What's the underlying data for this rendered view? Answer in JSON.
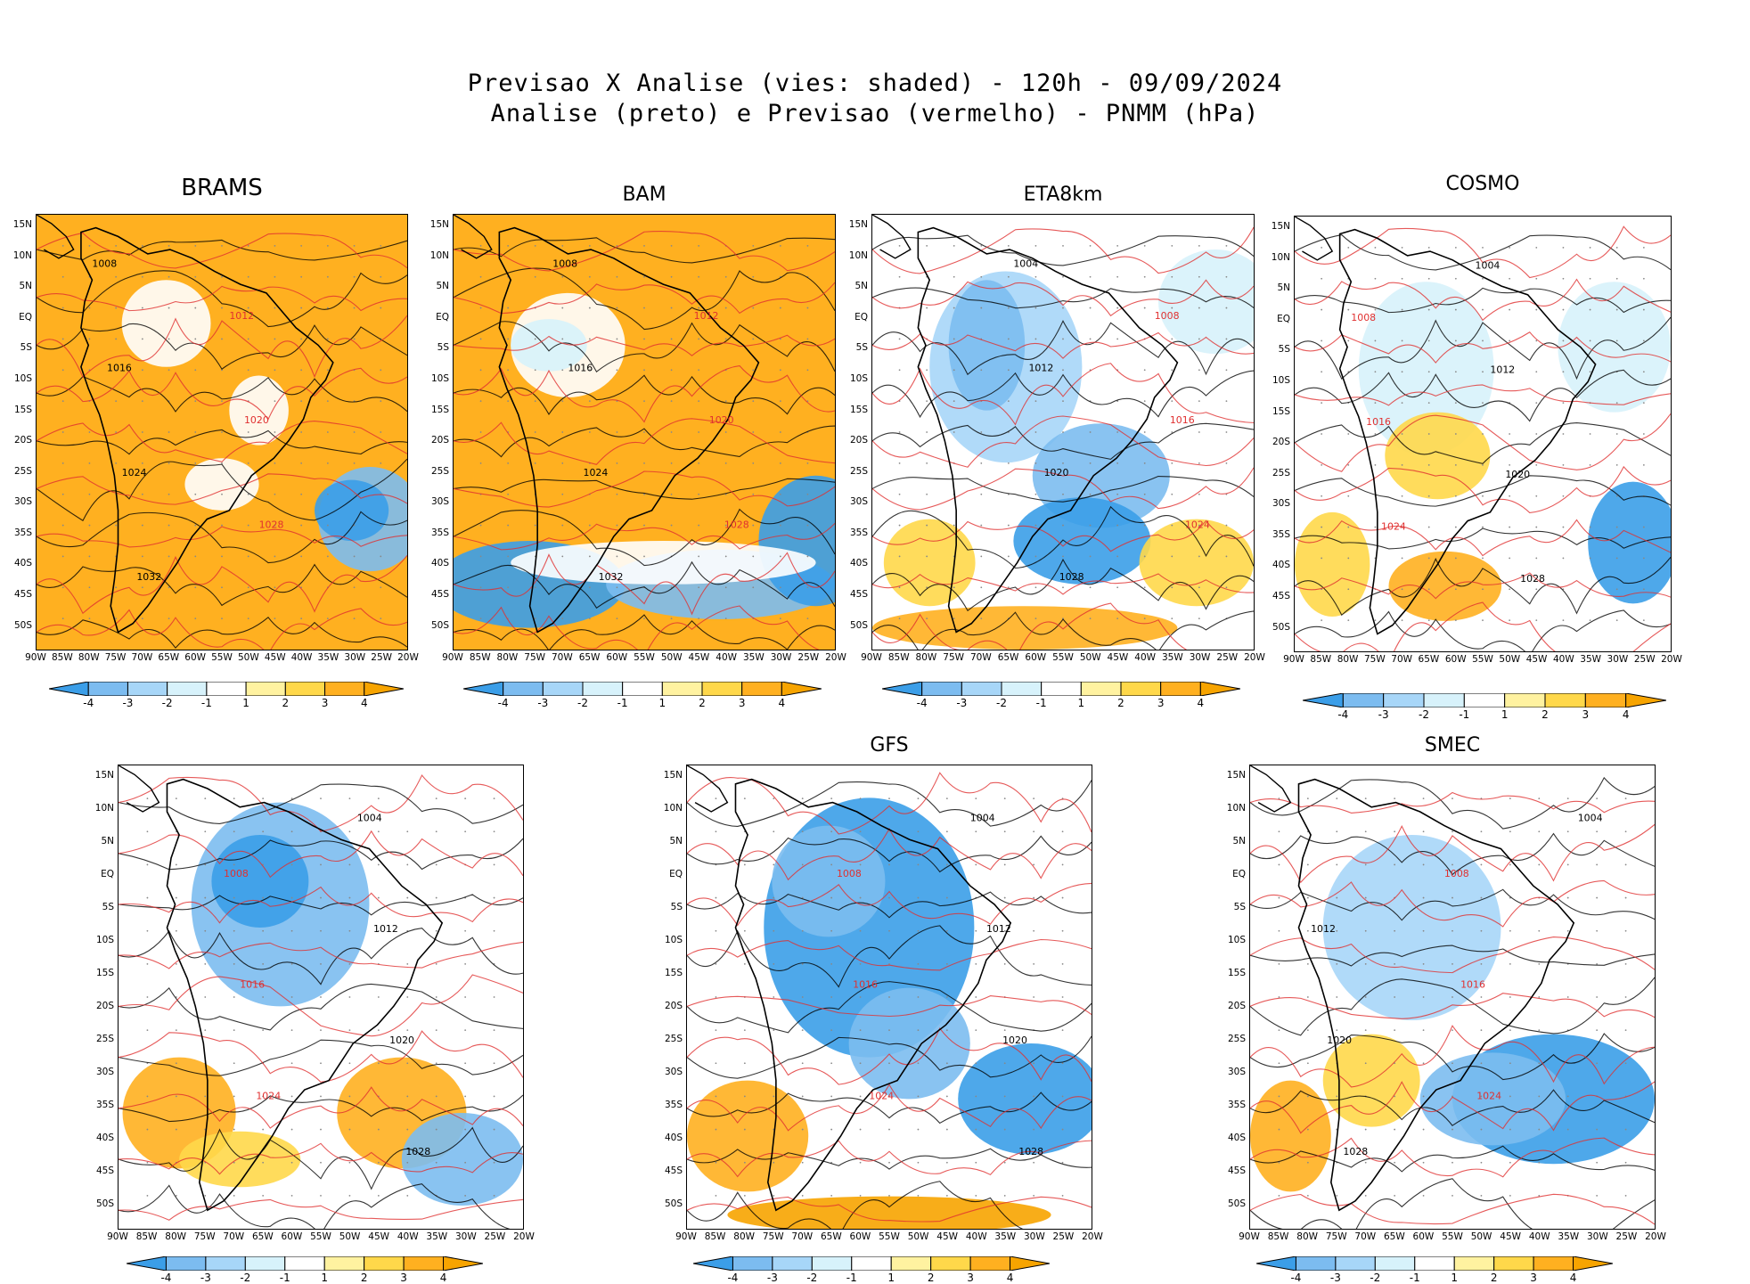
{
  "title": {
    "line1": "Previsao X Analise (vies: shaded) - 120h - 09/09/2024",
    "line2": "Analise (preto) e Previsao (vermelho) - PNMM (hPa)"
  },
  "axes": {
    "lat_labels": [
      "15N",
      "10N",
      "5N",
      "EQ",
      "5S",
      "10S",
      "15S",
      "20S",
      "25S",
      "30S",
      "35S",
      "40S",
      "45S",
      "50S"
    ],
    "lon_labels": [
      "90W",
      "85W",
      "80W",
      "75W",
      "70W",
      "65W",
      "60W",
      "55W",
      "50W",
      "45W",
      "40W",
      "35W",
      "30W",
      "25W",
      "20W"
    ]
  },
  "colorbar": {
    "labels": [
      "-4",
      "-3",
      "-2",
      "-1",
      "1",
      "2",
      "3",
      "4"
    ],
    "colors": [
      "#3b9ee8",
      "#7cbcf0",
      "#a7d6f8",
      "#d7f2fb",
      "#ffffff",
      "#fff2a0",
      "#ffd84a",
      "#ffb020",
      "#f7a400"
    ]
  },
  "colors": {
    "analysis_contour": "#000000",
    "forecast_contour": "#e03030",
    "coast": "#000000"
  },
  "panels": [
    {
      "id": "brams",
      "title": "BRAMS",
      "bias": "warm",
      "labels": [
        "1008",
        "1012",
        "1016",
        "1020",
        "1024",
        "1028",
        "1032"
      ]
    },
    {
      "id": "bam",
      "title": "BAM",
      "bias": "warm-south-cold",
      "labels": [
        "1008",
        "1012",
        "1016",
        "1020",
        "1024",
        "1028",
        "1032"
      ]
    },
    {
      "id": "eta",
      "title": "ETA8km",
      "bias": "cool",
      "labels": [
        "1004",
        "1008",
        "1012",
        "1016",
        "1020",
        "1024",
        "1028"
      ]
    },
    {
      "id": "cosmo",
      "title": "COSMO",
      "bias": "mixed",
      "labels": [
        "1004",
        "1008",
        "1012",
        "1016",
        "1020",
        "1024",
        "1028"
      ]
    },
    {
      "id": "p5",
      "title": "",
      "bias": "cool-warm-south",
      "labels": [
        "1004",
        "1008",
        "1012",
        "1016",
        "1020",
        "1024",
        "1028"
      ]
    },
    {
      "id": "gfs",
      "title": "GFS",
      "bias": "cold",
      "labels": [
        "1004",
        "1008",
        "1012",
        "1016",
        "1020",
        "1024",
        "1028"
      ]
    },
    {
      "id": "smec",
      "title": "SMEC",
      "bias": "cool-atlantic",
      "labels": [
        "1004",
        "1008",
        "1012",
        "1016",
        "1020",
        "1024",
        "1028"
      ]
    }
  ]
}
